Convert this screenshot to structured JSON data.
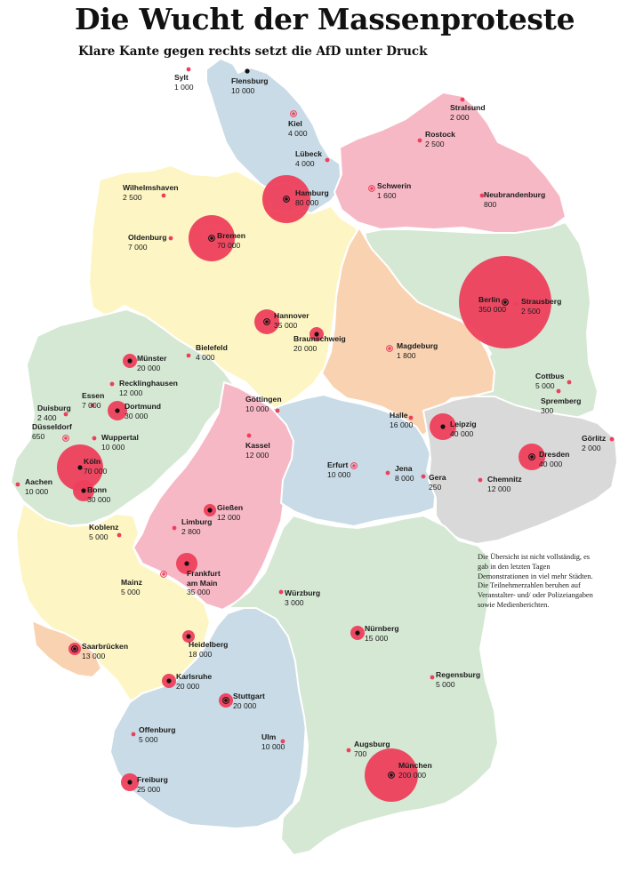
{
  "title": "Die Wucht der Massenproteste",
  "subtitle": "Klare Kante gegen rechts setzt die AfD unter Druck",
  "note": "Die Übersicht ist nicht vollständig, es gab in den letzten Tagen Demonstrationen in viel mehr Städten. Die Teilnehmerzahlen beruhen auf Veranstalter- und/ oder Polizeiangaben sowie Medienberichten.",
  "colors": {
    "bubble": "#ee3f5c",
    "state_light_blue": "#c8dbe6",
    "state_pink": "#f7b8c6",
    "state_yellow": "#fdf6c4",
    "state_peach": "#f9d3b1",
    "state_green": "#d5e8d4",
    "state_gray": "#d9d9d9"
  },
  "states": [
    {
      "id": "SH",
      "color": "light_blue"
    },
    {
      "id": "MV",
      "color": "pink"
    },
    {
      "id": "NI",
      "color": "yellow"
    },
    {
      "id": "HB",
      "color": "yellow"
    },
    {
      "id": "HH",
      "color": "light_blue"
    },
    {
      "id": "BB",
      "color": "green"
    },
    {
      "id": "BE",
      "color": "green"
    },
    {
      "id": "ST",
      "color": "peach"
    },
    {
      "id": "NW",
      "color": "green"
    },
    {
      "id": "HE",
      "color": "pink"
    },
    {
      "id": "TH",
      "color": "light_blue"
    },
    {
      "id": "SN",
      "color": "gray"
    },
    {
      "id": "RP",
      "color": "yellow"
    },
    {
      "id": "SL",
      "color": "peach"
    },
    {
      "id": "BW",
      "color": "light_blue"
    },
    {
      "id": "BY",
      "color": "green"
    }
  ],
  "cities": [
    {
      "id": "sylt",
      "name": "Sylt",
      "participants": 1000,
      "label": "1 000",
      "capital": false
    },
    {
      "id": "flensburg",
      "name": "Flensburg",
      "participants": 10000,
      "label": "10 000",
      "capital": false
    },
    {
      "id": "kiel",
      "name": "Kiel",
      "participants": 4000,
      "label": "4 000",
      "capital": true
    },
    {
      "id": "luebeck",
      "name": "Lübeck",
      "participants": 4000,
      "label": "4 000",
      "capital": false
    },
    {
      "id": "stralsund",
      "name": "Stralsund",
      "participants": 2000,
      "label": "2 000",
      "capital": false
    },
    {
      "id": "rostock",
      "name": "Rostock",
      "participants": 2500,
      "label": "2 500",
      "capital": false
    },
    {
      "id": "schwerin",
      "name": "Schwerin",
      "participants": 1600,
      "label": "1 600",
      "capital": true
    },
    {
      "id": "neubrandenburg",
      "name": "Neubrandenburg",
      "participants": 800,
      "label": "800",
      "capital": false
    },
    {
      "id": "wilhelmshaven",
      "name": "Wilhelmshaven",
      "participants": 2500,
      "label": "2 500",
      "capital": false
    },
    {
      "id": "hamburg",
      "name": "Hamburg",
      "participants": 80000,
      "label": "80 000",
      "capital": true
    },
    {
      "id": "oldenburg",
      "name": "Oldenburg",
      "participants": 7000,
      "label": "7 000",
      "capital": false
    },
    {
      "id": "bremen",
      "name": "Bremen",
      "participants": 70000,
      "label": "70 000",
      "capital": true
    },
    {
      "id": "berlin",
      "name": "Berlin",
      "participants": 350000,
      "label": "350 000",
      "capital": true
    },
    {
      "id": "strausberg",
      "name": "Strausberg",
      "participants": 2500,
      "label": "2 500",
      "capital": false
    },
    {
      "id": "hannover",
      "name": "Hannover",
      "participants": 35000,
      "label": "35 000",
      "capital": true
    },
    {
      "id": "braunschweig",
      "name": "Braunschweig",
      "participants": 20000,
      "label": "20 000",
      "capital": false
    },
    {
      "id": "magdeburg",
      "name": "Magdeburg",
      "participants": 1800,
      "label": "1 800",
      "capital": true
    },
    {
      "id": "muenster",
      "name": "Münster",
      "participants": 20000,
      "label": "20 000",
      "capital": false
    },
    {
      "id": "bielefeld",
      "name": "Bielefeld",
      "participants": 4000,
      "label": "4 000",
      "capital": false
    },
    {
      "id": "recklinghausen",
      "name": "Recklinghausen",
      "participants": 12000,
      "label": "12 000",
      "capital": false
    },
    {
      "id": "cottbus",
      "name": "Cottbus",
      "participants": 5000,
      "label": "5 000",
      "capital": false
    },
    {
      "id": "spremberg",
      "name": "Spremberg",
      "participants": 300,
      "label": "300",
      "capital": false
    },
    {
      "id": "duisburg",
      "name": "Duisburg",
      "participants": 2400,
      "label": "2 400",
      "capital": false
    },
    {
      "id": "essen",
      "name": "Essen",
      "participants": 7000,
      "label": "7 000",
      "capital": false
    },
    {
      "id": "dortmund",
      "name": "Dortmund",
      "participants": 30000,
      "label": "30 000",
      "capital": false
    },
    {
      "id": "goettingen",
      "name": "Göttingen",
      "participants": 10000,
      "label": "10 000",
      "capital": false
    },
    {
      "id": "halle",
      "name": "Halle",
      "participants": 16000,
      "label": "16 000",
      "capital": false
    },
    {
      "id": "leipzig",
      "name": "Leipzig",
      "participants": 40000,
      "label": "40 000",
      "capital": false
    },
    {
      "id": "duesseldorf",
      "name": "Düsseldorf",
      "participants": 650,
      "label": "650",
      "capital": true
    },
    {
      "id": "wuppertal",
      "name": "Wuppertal",
      "participants": 10000,
      "label": "10 000",
      "capital": false
    },
    {
      "id": "kassel",
      "name": "Kassel",
      "participants": 12000,
      "label": "12 000",
      "capital": false
    },
    {
      "id": "goerlitz",
      "name": "Görlitz",
      "participants": 2000,
      "label": "2 000",
      "capital": false
    },
    {
      "id": "dresden",
      "name": "Dresden",
      "participants": 40000,
      "label": "40 000",
      "capital": true
    },
    {
      "id": "koeln",
      "name": "Köln",
      "participants": 70000,
      "label": "70 000",
      "capital": false
    },
    {
      "id": "erfurt",
      "name": "Erfurt",
      "participants": 10000,
      "label": "10 000",
      "capital": true
    },
    {
      "id": "jena",
      "name": "Jena",
      "participants": 8000,
      "label": "8 000",
      "capital": false
    },
    {
      "id": "gera",
      "name": "Gera",
      "participants": 250,
      "label": "250",
      "capital": false
    },
    {
      "id": "aachen",
      "name": "Aachen",
      "participants": 10000,
      "label": "10 000",
      "capital": false
    },
    {
      "id": "bonn",
      "name": "Bonn",
      "participants": 30000,
      "label": "30 000",
      "capital": false
    },
    {
      "id": "chemnitz",
      "name": "Chemnitz",
      "participants": 12000,
      "label": "12 000",
      "capital": false
    },
    {
      "id": "giessen",
      "name": "Gießen",
      "participants": 12000,
      "label": "12 000",
      "capital": false
    },
    {
      "id": "koblenz",
      "name": "Koblenz",
      "participants": 5000,
      "label": "5 000",
      "capital": false
    },
    {
      "id": "limburg",
      "name": "Limburg",
      "participants": 2800,
      "label": "2 800",
      "capital": false
    },
    {
      "id": "mainz",
      "name": "Mainz",
      "participants": 5000,
      "label": "5 000",
      "capital": true
    },
    {
      "id": "frankfurt",
      "name": "Frankfurt am Main",
      "name_lines": [
        "Frankfurt",
        "am Main"
      ],
      "participants": 35000,
      "label": "35 000",
      "capital": false
    },
    {
      "id": "wuerzburg",
      "name": "Würzburg",
      "participants": 3000,
      "label": "3 000",
      "capital": false
    },
    {
      "id": "saarbruecken",
      "name": "Saarbrücken",
      "participants": 13000,
      "label": "13 000",
      "capital": true
    },
    {
      "id": "heidelberg",
      "name": "Heidelberg",
      "participants": 18000,
      "label": "18 000",
      "capital": false
    },
    {
      "id": "nuernberg",
      "name": "Nürnberg",
      "participants": 15000,
      "label": "15 000",
      "capital": false
    },
    {
      "id": "regensburg",
      "name": "Regensburg",
      "participants": 5000,
      "label": "5 000",
      "capital": false
    },
    {
      "id": "karlsruhe",
      "name": "Karlsruhe",
      "participants": 20000,
      "label": "20 000",
      "capital": false
    },
    {
      "id": "stuttgart",
      "name": "Stuttgart",
      "participants": 20000,
      "label": "20 000",
      "capital": true
    },
    {
      "id": "offenburg",
      "name": "Offenburg",
      "participants": 5000,
      "label": "5 000",
      "capital": false
    },
    {
      "id": "ulm",
      "name": "Ulm",
      "participants": 10000,
      "label": "10 000",
      "capital": false
    },
    {
      "id": "augsburg",
      "name": "Augsburg",
      "participants": 700,
      "label": "700",
      "capital": false
    },
    {
      "id": "muenchen",
      "name": "München",
      "participants": 200000,
      "label": "200 000",
      "capital": true
    },
    {
      "id": "freiburg",
      "name": "Freiburg",
      "participants": 25000,
      "label": "25 000",
      "capital": false
    }
  ]
}
